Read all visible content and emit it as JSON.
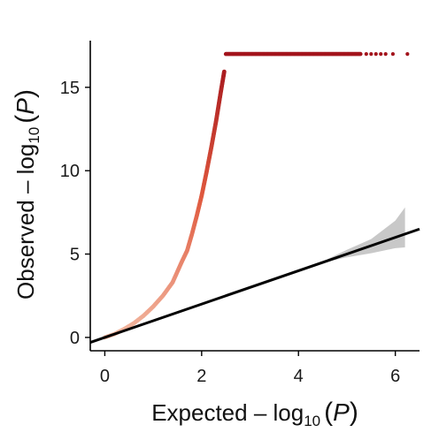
{
  "chart_data": {
    "type": "scatter",
    "xlabel": {
      "prefix": "Expected – log",
      "subscript": "10",
      "open_paren": "(",
      "variable": "P",
      "close_paren": ")"
    },
    "ylabel": {
      "prefix": "Observed – log",
      "subscript": "10",
      "open_paren": "(",
      "variable": "P",
      "close_paren": ")"
    },
    "xlim": [
      -0.3,
      6.5
    ],
    "ylim": [
      -0.8,
      17.8
    ],
    "x_ticks": [
      0,
      2,
      4,
      6
    ],
    "x_tick_labels": [
      "0",
      "2",
      "4",
      "6"
    ],
    "y_ticks": [
      0,
      5,
      10,
      15
    ],
    "y_tick_labels": [
      "0",
      "5",
      "10",
      "15"
    ],
    "grid": false,
    "series": [
      {
        "kind": "points",
        "color_gradient": [
          "#f2b9a2",
          "#e05a3f",
          "#a3141c"
        ],
        "curve_points": [
          [
            0.0,
            0.0
          ],
          [
            0.2,
            0.2
          ],
          [
            0.4,
            0.5
          ],
          [
            0.6,
            0.85
          ],
          [
            0.8,
            1.3
          ],
          [
            1.0,
            1.85
          ],
          [
            1.2,
            2.5
          ],
          [
            1.4,
            3.3
          ],
          [
            1.6,
            4.6
          ],
          [
            1.7,
            5.2
          ],
          [
            1.8,
            6.2
          ],
          [
            1.9,
            7.3
          ],
          [
            2.0,
            8.5
          ],
          [
            2.1,
            9.9
          ],
          [
            2.2,
            11.4
          ],
          [
            2.3,
            13.0
          ],
          [
            2.4,
            14.8
          ],
          [
            2.47,
            16.0
          ]
        ],
        "plateau_value": 17.0,
        "plateau_x_range": [
          2.5,
          5.3
        ],
        "plateau_tail": [
          5.4,
          5.5,
          5.6,
          5.7,
          5.8,
          5.95,
          6.25
        ]
      },
      {
        "kind": "reference_line",
        "color": "#000000",
        "x": [
          -0.3,
          6.5
        ],
        "y": [
          -0.3,
          6.5
        ]
      },
      {
        "kind": "confidence_band",
        "color": "#c8c8c8",
        "x": [
          4.6,
          5.0,
          5.5,
          6.0,
          6.2
        ],
        "lower": [
          4.55,
          4.8,
          5.05,
          5.35,
          5.4
        ],
        "upper": [
          4.7,
          5.25,
          5.9,
          7.0,
          7.8
        ]
      }
    ]
  }
}
